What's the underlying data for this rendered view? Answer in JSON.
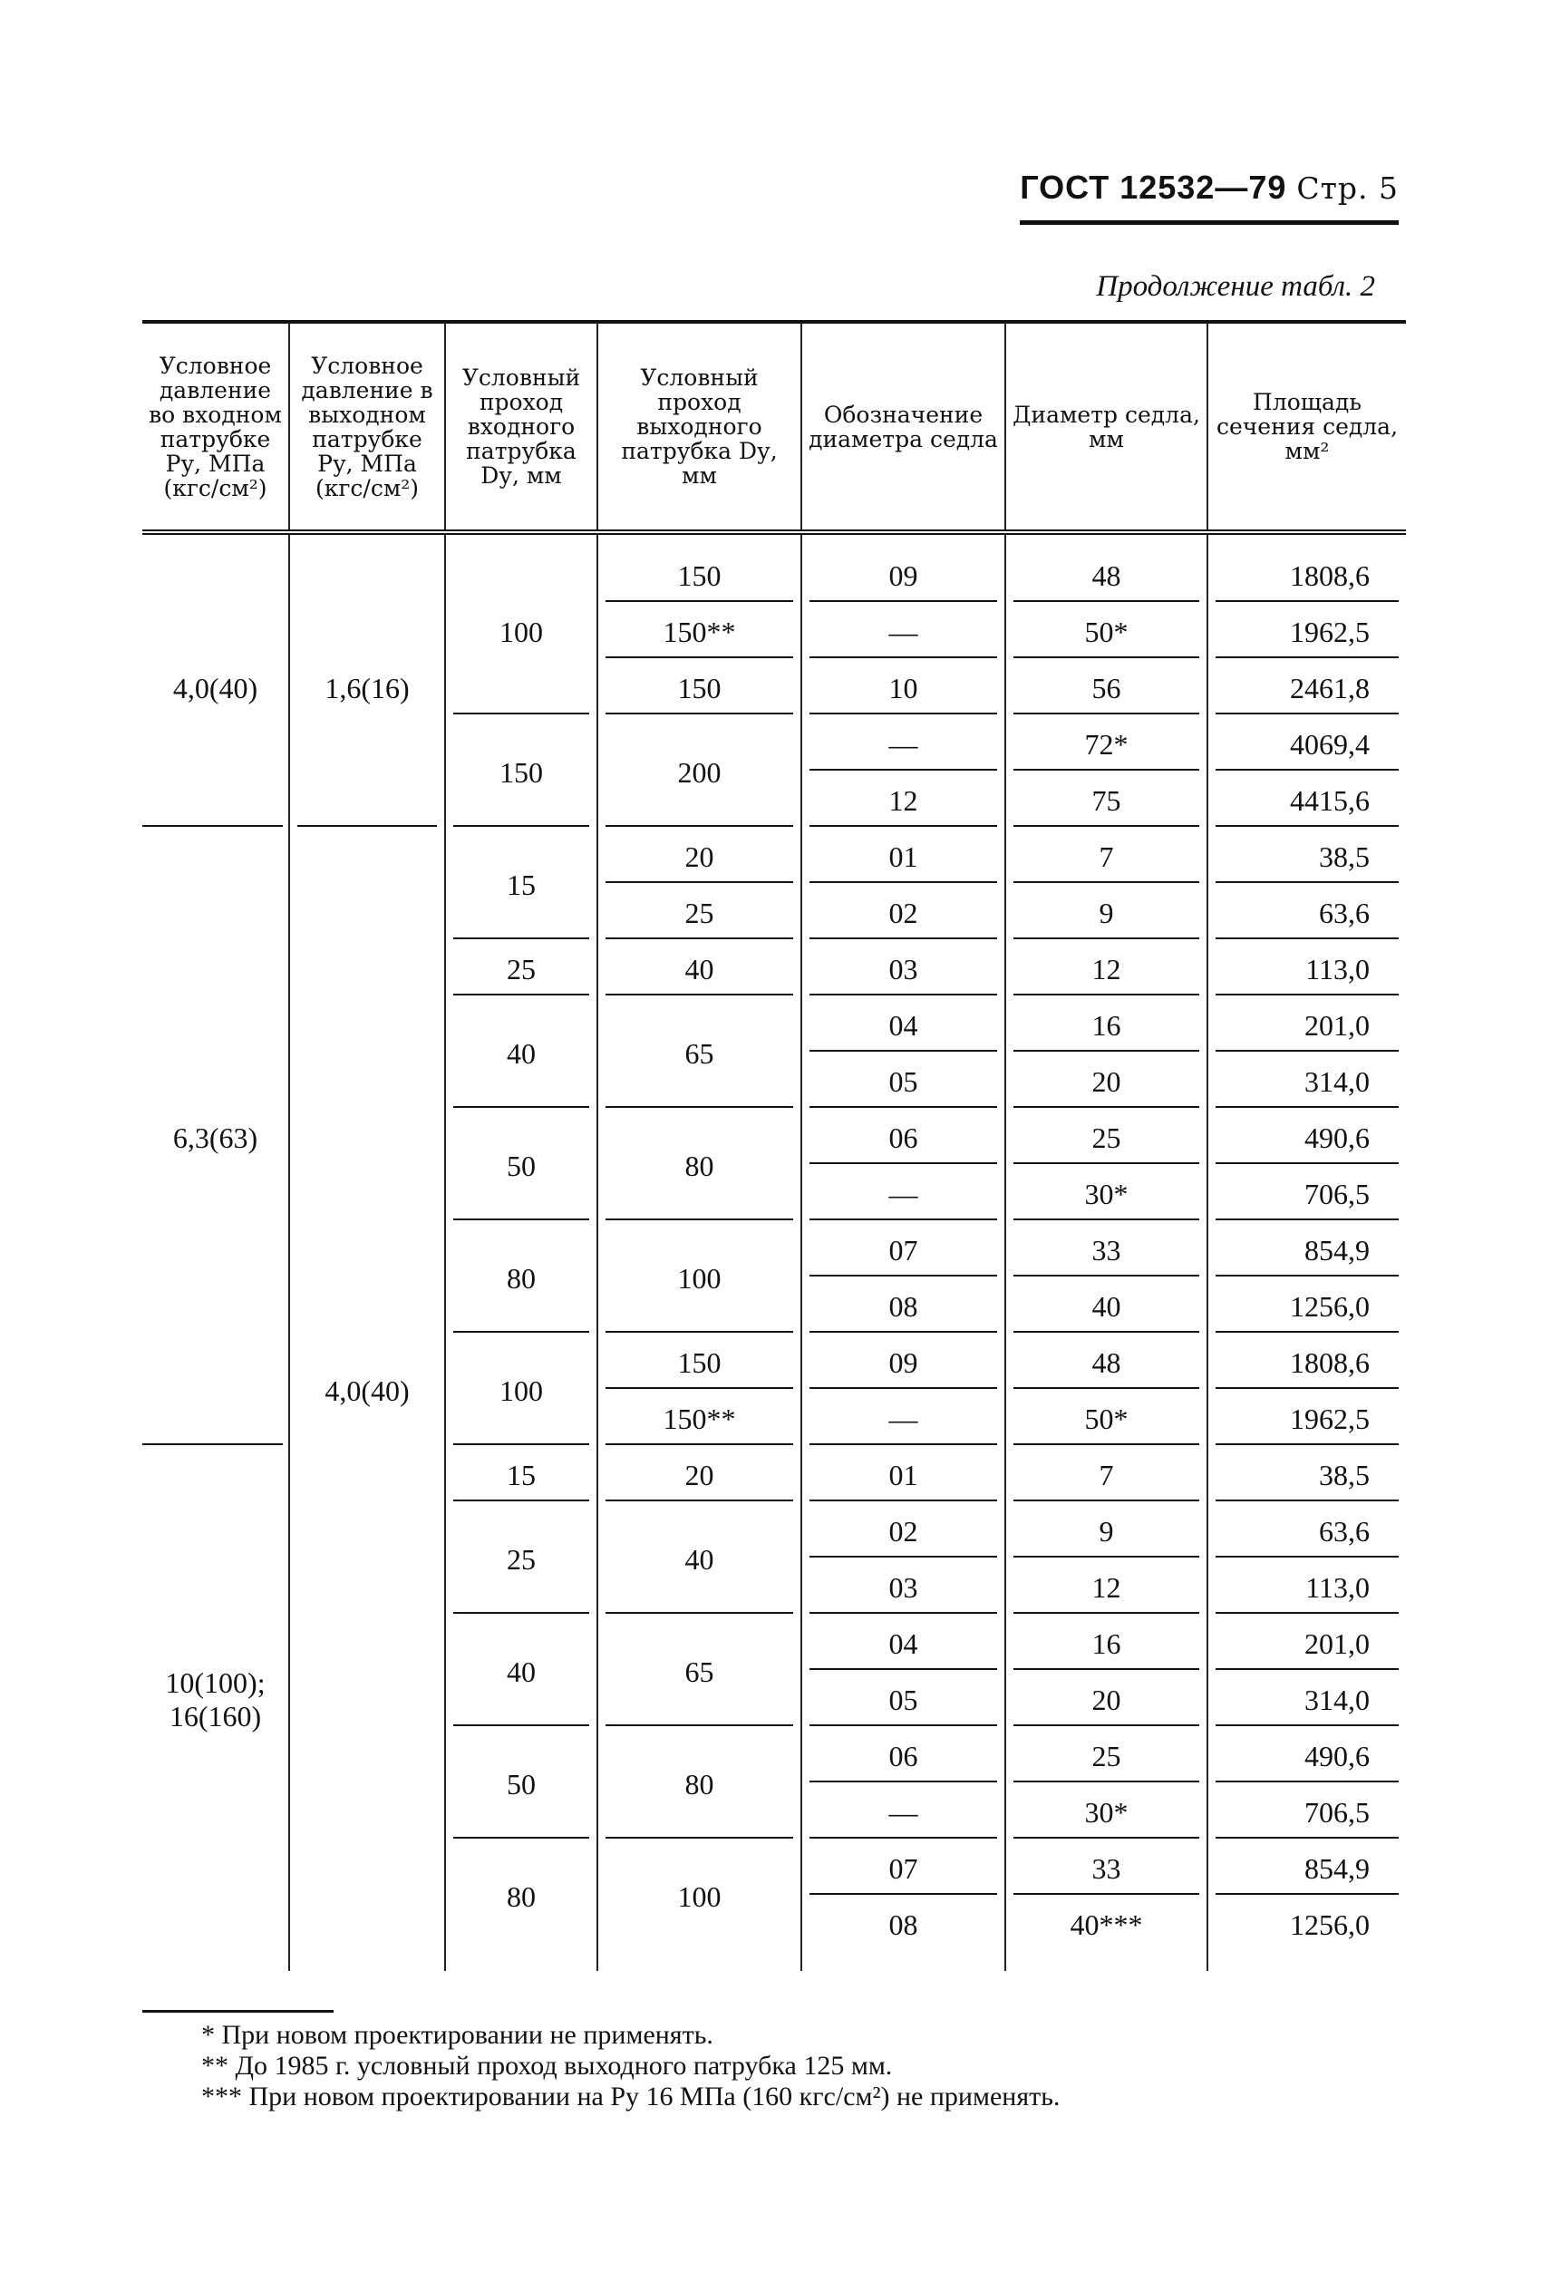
{
  "header": {
    "doc": "ГОСТ 12532—79",
    "page": "Стр. 5"
  },
  "continuation": "Продолжение табл. 2",
  "table": {
    "columns": [
      "Условное давление во входном патрубке Pу, МПа (кгс/см²)",
      "Условное давление в выходном патрубке Pу, МПа (кгс/см²)",
      "Условный проход входного патрубка Dу, мм",
      "Условный проход выходного патрубка Dу, мм",
      "Обозначение диаметра седла",
      "Диаметр седла, мм",
      "Площадь сечения седла, мм²"
    ],
    "p_in_groups": [
      {
        "value": "4,0(40)",
        "rows": 5
      },
      {
        "value": "6,3(63)",
        "rows": 11
      },
      {
        "value": "10(100); 16(160)",
        "rows": 9
      }
    ],
    "p_out_groups": [
      {
        "value": "1,6(16)",
        "rows": 5
      },
      {
        "value": "4,0(40)",
        "rows": 20
      }
    ],
    "d_in_groups": [
      {
        "value": "100",
        "rows": 3
      },
      {
        "value": "150",
        "rows": 2
      },
      {
        "value": "15",
        "rows": 2
      },
      {
        "value": "25",
        "rows": 1
      },
      {
        "value": "40",
        "rows": 2
      },
      {
        "value": "50",
        "rows": 2
      },
      {
        "value": "80",
        "rows": 2
      },
      {
        "value": "100",
        "rows": 2
      },
      {
        "value": "15",
        "rows": 1
      },
      {
        "value": "25",
        "rows": 2
      },
      {
        "value": "40",
        "rows": 2
      },
      {
        "value": "50",
        "rows": 2
      },
      {
        "value": "80",
        "rows": 2
      }
    ],
    "d_out_groups": [
      {
        "value": "150",
        "rows": 1
      },
      {
        "value": "150**",
        "rows": 1
      },
      {
        "value": "150",
        "rows": 1
      },
      {
        "value": "200",
        "rows": 2
      },
      {
        "value": "20",
        "rows": 1
      },
      {
        "value": "25",
        "rows": 1
      },
      {
        "value": "40",
        "rows": 1
      },
      {
        "value": "65",
        "rows": 2
      },
      {
        "value": "80",
        "rows": 2
      },
      {
        "value": "100",
        "rows": 2
      },
      {
        "value": "150",
        "rows": 1
      },
      {
        "value": "150**",
        "rows": 1
      },
      {
        "value": "20",
        "rows": 1
      },
      {
        "value": "40",
        "rows": 2
      },
      {
        "value": "65",
        "rows": 2
      },
      {
        "value": "80",
        "rows": 2
      },
      {
        "value": "100",
        "rows": 2
      }
    ],
    "rows": [
      {
        "code": "09",
        "diameter": "48",
        "area": "1808,6"
      },
      {
        "code": "—",
        "diameter": "50*",
        "area": "1962,5"
      },
      {
        "code": "10",
        "diameter": "56",
        "area": "2461,8"
      },
      {
        "code": "—",
        "diameter": "72*",
        "area": "4069,4"
      },
      {
        "code": "12",
        "diameter": "75",
        "area": "4415,6"
      },
      {
        "code": "01",
        "diameter": "7",
        "area": "38,5"
      },
      {
        "code": "02",
        "diameter": "9",
        "area": "63,6"
      },
      {
        "code": "03",
        "diameter": "12",
        "area": "113,0"
      },
      {
        "code": "04",
        "diameter": "16",
        "area": "201,0"
      },
      {
        "code": "05",
        "diameter": "20",
        "area": "314,0"
      },
      {
        "code": "06",
        "diameter": "25",
        "area": "490,6"
      },
      {
        "code": "—",
        "diameter": "30*",
        "area": "706,5"
      },
      {
        "code": "07",
        "diameter": "33",
        "area": "854,9"
      },
      {
        "code": "08",
        "diameter": "40",
        "area": "1256,0"
      },
      {
        "code": "09",
        "diameter": "48",
        "area": "1808,6"
      },
      {
        "code": "—",
        "diameter": "50*",
        "area": "1962,5"
      },
      {
        "code": "01",
        "diameter": "7",
        "area": "38,5"
      },
      {
        "code": "02",
        "diameter": "9",
        "area": "63,6"
      },
      {
        "code": "03",
        "diameter": "12",
        "area": "113,0"
      },
      {
        "code": "04",
        "diameter": "16",
        "area": "201,0"
      },
      {
        "code": "05",
        "diameter": "20",
        "area": "314,0"
      },
      {
        "code": "06",
        "diameter": "25",
        "area": "490,6"
      },
      {
        "code": "—",
        "diameter": "30*",
        "area": "706,5"
      },
      {
        "code": "07",
        "diameter": "33",
        "area": "854,9"
      },
      {
        "code": "08",
        "diameter": "40***",
        "area": "1256,0"
      }
    ]
  },
  "footnotes": [
    "* При новом проектировании не применять.",
    "** До 1985 г. условный проход выходного патрубка 125 мм.",
    "*** При новом проектировании на Pу 16 МПа (160 кгс/см²) не применять."
  ]
}
